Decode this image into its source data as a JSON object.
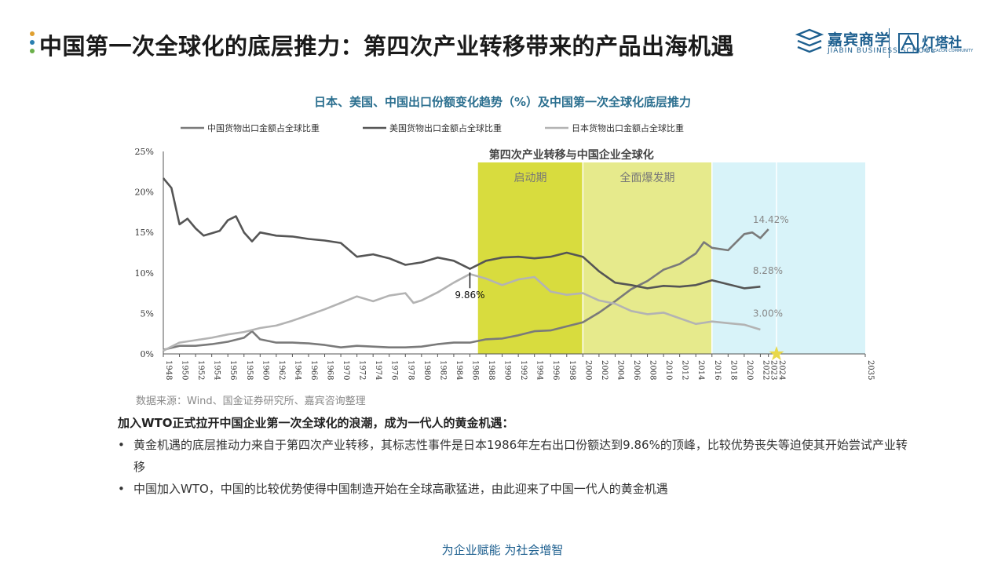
{
  "header": {
    "title": "中国第一次全球化的底层推力：第四次产业转移带来的产品出海机遇",
    "dot_colors": [
      "#e0a030",
      "#2a7fb0",
      "#6bb04a"
    ]
  },
  "logos": {
    "jiabin_cn": "嘉宾商学",
    "jiabin_en": "JIABIN BUSINESS SCHOOL",
    "beacon_cn": "灯塔社",
    "beacon_en": "THE BEACON COMMUNITY"
  },
  "chart_data": {
    "type": "line",
    "title": "日本、美国、中国出口份额变化趋势（%）及中国第一次全球化底层推力",
    "xlim": [
      1948,
      2035
    ],
    "ylim": [
      0,
      25
    ],
    "y_ticks": [
      "0%",
      "5%",
      "10%",
      "15%",
      "20%",
      "25%"
    ],
    "x_ticks": [
      "1948",
      "1950",
      "1952",
      "1954",
      "1956",
      "1958",
      "1960",
      "1962",
      "1964",
      "1966",
      "1968",
      "1970",
      "1972",
      "1974",
      "1976",
      "1978",
      "1980",
      "1982",
      "1984",
      "1986",
      "1988",
      "1990",
      "1992",
      "1994",
      "1996",
      "1998",
      "2000",
      "2002",
      "2004",
      "2006",
      "2008",
      "2010",
      "2012",
      "2014",
      "2016",
      "2018",
      "2020",
      "2022",
      "2023",
      "2024",
      "2035"
    ],
    "grid": false,
    "legend_position": "top",
    "series": [
      {
        "name": "中国货物出口金额占全球比重",
        "color": "#7a7a7a",
        "x": [
          1948,
          1950,
          1952,
          1954,
          1956,
          1958,
          1959,
          1960,
          1962,
          1964,
          1966,
          1968,
          1970,
          1972,
          1974,
          1976,
          1978,
          1980,
          1982,
          1984,
          1986,
          1988,
          1990,
          1992,
          1994,
          1996,
          1998,
          2000,
          2002,
          2004,
          2006,
          2008,
          2010,
          2012,
          2014,
          2015,
          2016,
          2018,
          2020,
          2021,
          2022,
          2023
        ],
        "values": [
          0.5,
          1.0,
          1.0,
          1.2,
          1.5,
          2.0,
          2.8,
          1.8,
          1.4,
          1.4,
          1.3,
          1.1,
          0.8,
          1.0,
          0.9,
          0.8,
          0.8,
          0.9,
          1.2,
          1.4,
          1.4,
          1.8,
          1.9,
          2.3,
          2.8,
          2.9,
          3.4,
          3.9,
          5.1,
          6.5,
          8.0,
          9.0,
          10.4,
          11.1,
          12.4,
          13.8,
          13.1,
          12.8,
          14.8,
          15.0,
          14.3,
          15.4
        ]
      },
      {
        "name": "美国货物出口金额占全球比重",
        "color": "#555555",
        "x": [
          1948,
          1949,
          1950,
          1951,
          1952,
          1953,
          1954,
          1955,
          1956,
          1957,
          1958,
          1959,
          1960,
          1962,
          1964,
          1966,
          1968,
          1970,
          1972,
          1974,
          1976,
          1978,
          1980,
          1982,
          1984,
          1986,
          1988,
          1990,
          1992,
          1994,
          1996,
          1998,
          2000,
          2002,
          2004,
          2006,
          2008,
          2010,
          2012,
          2014,
          2016,
          2018,
          2020,
          2022
        ],
        "values": [
          21.7,
          20.5,
          16.0,
          16.7,
          15.5,
          14.6,
          14.9,
          15.2,
          16.5,
          17.0,
          15.0,
          13.9,
          15.0,
          14.6,
          14.5,
          14.2,
          14.0,
          13.7,
          12.0,
          12.3,
          11.8,
          11.0,
          11.3,
          11.9,
          11.5,
          10.5,
          11.5,
          11.9,
          12.0,
          11.8,
          12.0,
          12.5,
          12.0,
          10.2,
          8.8,
          8.5,
          8.1,
          8.4,
          8.3,
          8.5,
          9.1,
          8.6,
          8.1,
          8.3
        ]
      },
      {
        "name": "日本货物出口金额占全球比重",
        "color": "#b3b3b3",
        "x": [
          1948,
          1950,
          1952,
          1954,
          1956,
          1958,
          1960,
          1962,
          1964,
          1966,
          1968,
          1970,
          1972,
          1974,
          1976,
          1978,
          1979,
          1980,
          1982,
          1984,
          1986,
          1988,
          1990,
          1992,
          1994,
          1996,
          1998,
          2000,
          2002,
          2004,
          2006,
          2008,
          2010,
          2012,
          2014,
          2016,
          2018,
          2020,
          2022
        ],
        "values": [
          0.4,
          1.4,
          1.7,
          2.0,
          2.4,
          2.7,
          3.2,
          3.5,
          4.1,
          4.8,
          5.5,
          6.3,
          7.1,
          6.5,
          7.2,
          7.5,
          6.3,
          6.6,
          7.6,
          8.8,
          9.86,
          9.3,
          8.5,
          9.2,
          9.5,
          7.7,
          7.3,
          7.5,
          6.6,
          6.2,
          5.3,
          4.9,
          5.1,
          4.4,
          3.7,
          4.0,
          3.8,
          3.6,
          3.0
        ]
      }
    ],
    "shaded_periods": [
      {
        "label": "启动期",
        "x_start": 1987,
        "x_end": 2000,
        "color": "#d8dc3e"
      },
      {
        "label": "全面爆发期",
        "x_start": 2000,
        "x_end": 2016,
        "color": "#e6ea8c"
      },
      {
        "label": "",
        "x_start": 2016,
        "x_end": 2024,
        "color": "#d8f3f9"
      },
      {
        "label": "",
        "x_start": 2024,
        "x_end": 2035,
        "color": "#d8f3f9"
      }
    ],
    "shaded_group_label": "第四次产业转移与中国企业全球化",
    "annotations": [
      {
        "text": "9.86%",
        "x": 1986,
        "y": 9.86
      },
      {
        "text": "14.42%",
        "x": 2020,
        "y": 16.2
      },
      {
        "text": "8.28%",
        "x": 2020,
        "y": 9.9
      },
      {
        "text": "3.00%",
        "x": 2020,
        "y": 4.6
      }
    ],
    "marker": {
      "shape": "star",
      "x": 2024,
      "y": 0,
      "color": "#e8d84a"
    }
  },
  "source": "数据来源：Wind、国金证券研究所、嘉宾咨询整理",
  "paragraph": {
    "heading": "加入WTO正式拉开中国企业第一次全球化的浪潮，成为一代人的黄金机遇：",
    "bullets": [
      "黄金机遇的底层推动力来自于第四次产业转移，其标志性事件是日本1986年左右出口份额达到9.86%的顶峰，比较优势丧失等迫使其开始尝试产业转移",
      "中国加入WTO，中国的比较优势使得中国制造开始在全球高歌猛进，由此迎来了中国一代人的黄金机遇"
    ],
    "bullet_mark": "•"
  },
  "footer": "为企业赋能  为社会增智"
}
